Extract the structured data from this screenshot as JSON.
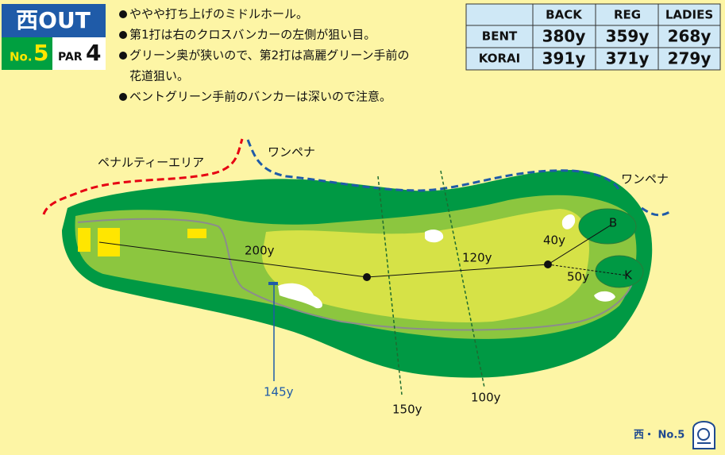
{
  "header": {
    "course": "西OUT",
    "hole_prefix": "No.",
    "hole_number": "5",
    "par_label": "PAR",
    "par": "4"
  },
  "notes": [
    [
      "ややや打ち上げのミドルホール。"
    ],
    [
      "第1打は右のクロスバンカーの左側が狙い目。"
    ],
    [
      "グリーン奥が狭いので、第2打は高麗グリーン手前の",
      "花道狙い。"
    ],
    [
      "ベントグリーン手前のバンカーは深いので注意。"
    ]
  ],
  "table": {
    "columns": [
      "BACK",
      "REG",
      "LADIES"
    ],
    "rows": [
      [
        "BENT",
        "380y",
        "359y",
        "268y"
      ],
      [
        "KORAI",
        "391y",
        "371y",
        "279y"
      ]
    ]
  },
  "map": {
    "penalty_area": "ペナルティーエリア",
    "one_penalty_left": "ワンペナ",
    "one_penalty_right": "ワンペナ",
    "green_back": "B",
    "green_korai": "K",
    "distances": {
      "d200": "200y",
      "d120": "120y",
      "d40": "40y",
      "d50": "50y",
      "d145": "145y",
      "d150": "150y",
      "d100": "100y"
    }
  },
  "footer": {
    "label": "西・ No.5"
  }
}
